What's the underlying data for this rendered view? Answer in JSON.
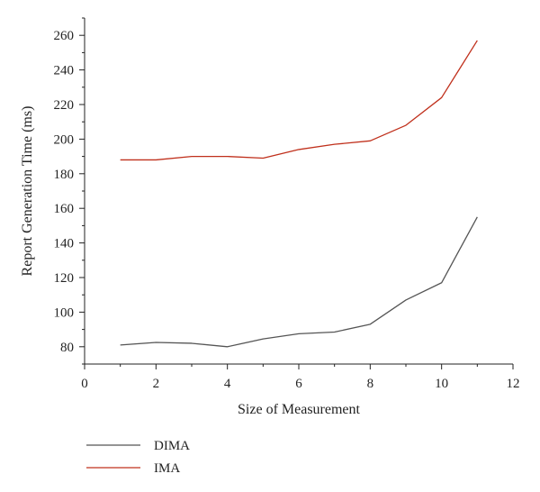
{
  "chart_data": {
    "type": "line",
    "title": "",
    "xlabel": "Size of Measurement",
    "ylabel": "Report Generation Time (ms)",
    "xlim": [
      0,
      12
    ],
    "ylim": [
      70,
      270
    ],
    "x_ticks": [
      0,
      2,
      4,
      6,
      8,
      10,
      12
    ],
    "y_ticks": [
      80,
      100,
      120,
      140,
      160,
      180,
      200,
      220,
      240,
      260
    ],
    "grid": false,
    "legend_position": "bottom-left, below plot",
    "x": [
      1,
      2,
      3,
      4,
      5,
      6,
      7,
      8,
      9,
      10,
      11
    ],
    "series": [
      {
        "name": "DIMA",
        "color": "#555555",
        "values": [
          81,
          82.5,
          82,
          80,
          84.5,
          87.5,
          88.5,
          93,
          107,
          117,
          155
        ]
      },
      {
        "name": "IMA",
        "color": "#c0301c",
        "values": [
          188,
          188,
          190,
          190,
          189,
          194,
          197,
          199,
          208,
          224,
          257
        ]
      }
    ]
  }
}
